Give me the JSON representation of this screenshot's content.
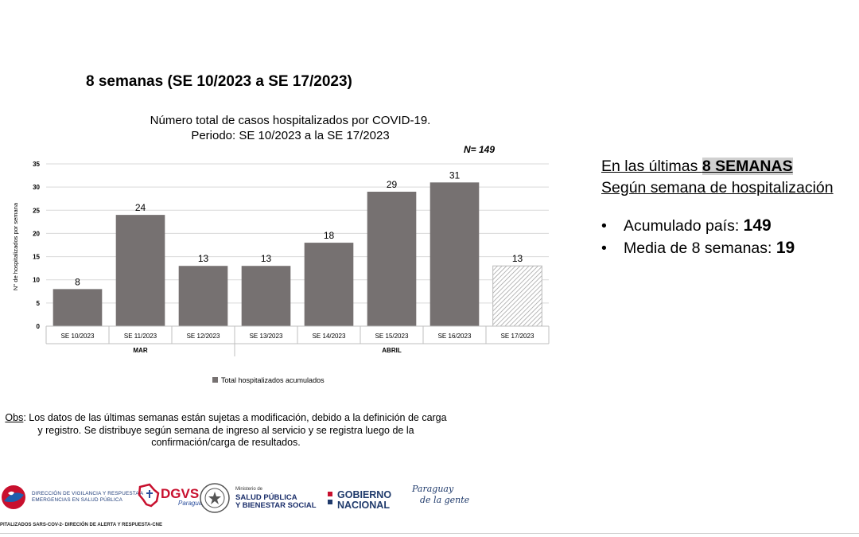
{
  "heading": "8 semanas (SE 10/2023 a SE 17/2023)",
  "chart_data": {
    "type": "bar",
    "title": [
      "Número total de casos hospitalizados por COVID-19.",
      "Periodo:  SE 10/2023 a la SE 17/2023"
    ],
    "n_total": "N= 149",
    "categories": [
      "SE 10/2023",
      "SE 11/2023",
      "SE 12/2023",
      "SE 13/2023",
      "SE 14/2023",
      "SE 15/2023",
      "SE 16/2023",
      "SE 17/2023"
    ],
    "values": [
      8,
      24,
      13,
      13,
      18,
      29,
      31,
      13
    ],
    "data_labels": [
      "8",
      "24",
      "13",
      "13",
      "18",
      "29",
      "31",
      "13"
    ],
    "months": [
      {
        "label": "MAR",
        "from": 0,
        "to": 2
      },
      {
        "label": "ABRIL",
        "from": 3,
        "to": 7
      }
    ],
    "ylabel": "N° de hospitalizados por semana",
    "ylim": [
      0,
      35
    ],
    "yticks": [
      0,
      5,
      10,
      15,
      20,
      25,
      30,
      35
    ],
    "ytick_labels": [
      "0",
      "5",
      "10",
      "15",
      "20",
      "25",
      "30",
      "35"
    ],
    "legend": "Total hospitalizados acumulados",
    "legend_position": "bottom",
    "grid": true,
    "bar_color": "#767171",
    "hatched_last_bar": true
  },
  "summary": {
    "line1_prefix": "En las últimas ",
    "line1_highlight": "8 SEMANAS",
    "line2": "Según semana de hospitalización",
    "bullets": [
      {
        "label": "Acumulado país: ",
        "value": "149"
      },
      {
        "label": "Media de 8 semanas: ",
        "value": "19"
      }
    ],
    "bullet_glyph": "•"
  },
  "obs": {
    "label": "Obs",
    "text": ": Los datos de las últimas semanas están sujetas a modificación, debido a la definición de carga y registro. Se distribuye según semana de ingreso al servicio y  se registra luego de la confirmación/carga de resultados."
  },
  "logos": {
    "dvr": [
      "DIRECCIÓN DE VIGILANCIA Y RESPUESTA A",
      "EMERGENCIAS EN SALUD PÚBLICA"
    ],
    "dgvs": "DGVS",
    "dgvs_sub": "Paraguay",
    "msp_small": "Ministerio de",
    "msp": [
      "SALUD PÚBLICA",
      "Y BIENESTAR SOCIAL"
    ],
    "gobierno": [
      "GOBIERNO",
      "NACIONAL"
    ],
    "pdz": [
      "Paraguay",
      "de la gente"
    ]
  },
  "footer": "PITALIZADOS SARS-COV-2- DIRECIÓN DE ALERTA Y RESPUESTA-CNE"
}
